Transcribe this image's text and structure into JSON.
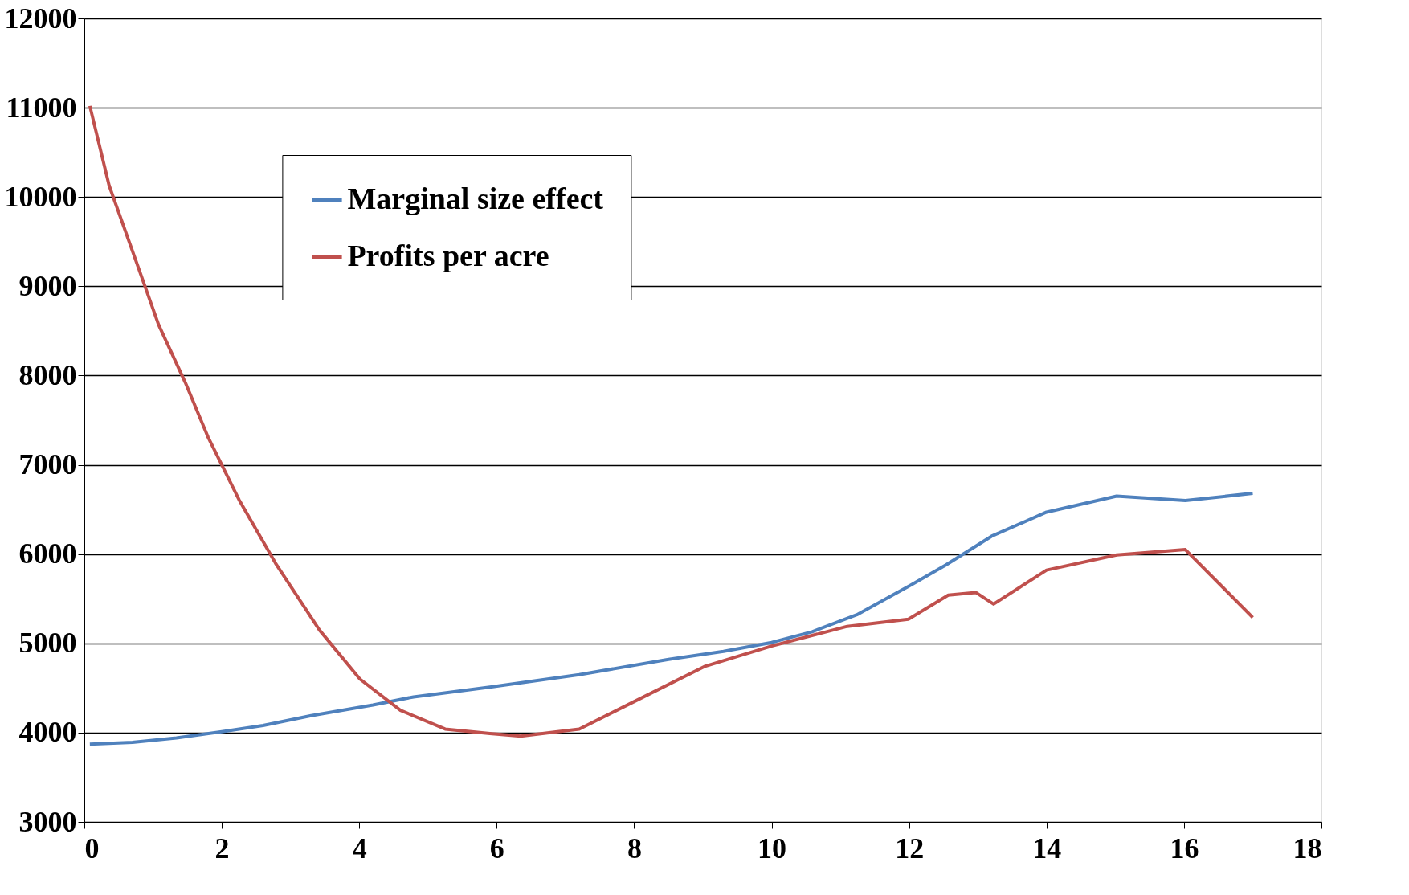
{
  "chart_data": {
    "type": "line",
    "series": [
      {
        "name": "Marginal size effect",
        "color": "#4f81bd",
        "x": [
          0.08,
          0.7,
          1.34,
          2.0,
          2.6,
          3.3,
          4.2,
          4.79,
          5.9,
          7.2,
          8.5,
          9.3,
          10.0,
          10.59,
          11.24,
          12.02,
          12.54,
          13.2,
          14.0,
          15.02,
          16.02,
          17.0
        ],
        "values": [
          3870,
          3890,
          3940,
          4010,
          4080,
          4190,
          4310,
          4400,
          4510,
          4650,
          4820,
          4910,
          5010,
          5130,
          5320,
          5650,
          5880,
          6200,
          6470,
          6650,
          6600,
          6680
        ]
      },
      {
        "name": "Profits per acre",
        "color": "#c0504d",
        "x": [
          0.08,
          0.36,
          0.73,
          1.08,
          1.47,
          1.8,
          2.25,
          2.78,
          3.42,
          4.01,
          4.6,
          5.25,
          5.9,
          6.35,
          7.2,
          7.98,
          9.02,
          10.0,
          11.1,
          11.99,
          12.57,
          12.97,
          13.23,
          14.0,
          15.02,
          16.02,
          17.0
        ],
        "values": [
          11020,
          10130,
          9330,
          8570,
          7920,
          7310,
          6610,
          5900,
          5150,
          4600,
          4250,
          4040,
          3990,
          3960,
          4040,
          4340,
          4740,
          4970,
          5190,
          5270,
          5540,
          5570,
          5440,
          5820,
          5990,
          6050,
          5290
        ]
      }
    ],
    "xlim": [
      0,
      18
    ],
    "xticks": [
      0,
      2,
      4,
      6,
      8,
      10,
      12,
      14,
      16,
      18
    ],
    "ylim": [
      3000,
      12000
    ],
    "yticks": [
      3000,
      4000,
      5000,
      6000,
      7000,
      8000,
      9000,
      10000,
      11000,
      12000
    ],
    "grid": "y",
    "legend": "top left",
    "marker": "none",
    "line_style": "solid"
  }
}
